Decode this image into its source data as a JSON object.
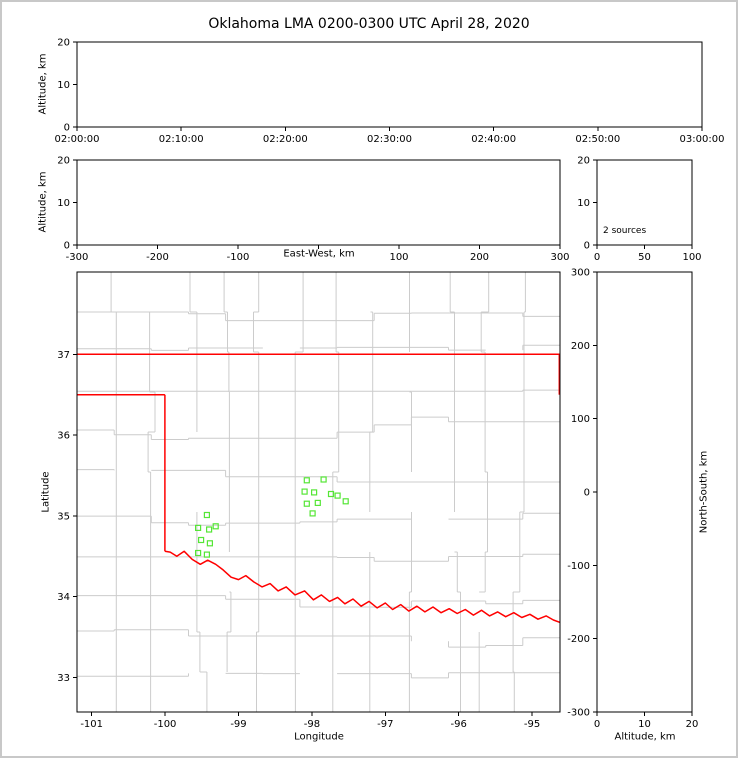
{
  "title": "Oklahoma LMA 0200-0300 UTC April 28, 2020",
  "colors": {
    "state_border": "#ff0000",
    "county": "#cccccc",
    "source": "#55e636",
    "axis": "#000000",
    "background": "#ffffff",
    "frame": "#c8c8c8"
  },
  "panels": {
    "time_height": {
      "ylabel": "Altitude, km"
    },
    "ew_height": {
      "ylabel": "Altitude, km",
      "xlabel": "East-West, km"
    },
    "alt_hist": {
      "annotation": "2 sources"
    },
    "plan_view": {
      "xlabel": "Longitude",
      "ylabel": "Latitude"
    },
    "ns_height": {
      "xlabel": "Altitude, km",
      "ylabel": "North-South, km"
    }
  },
  "chart_data": [
    {
      "id": "time_height",
      "type": "scatter",
      "title": "Oklahoma LMA 0200-0300 UTC April 28, 2020",
      "xlabel": "",
      "ylabel": "Altitude, km",
      "xticks": [
        "02:00:00",
        "02:10:00",
        "02:20:00",
        "02:30:00",
        "02:40:00",
        "02:50:00",
        "03:00:00"
      ],
      "ylim": [
        0,
        20
      ],
      "yticks": [
        0,
        10,
        20
      ],
      "grid": false,
      "points": []
    },
    {
      "id": "ew_height",
      "type": "scatter",
      "xlabel": "East-West, km",
      "ylabel": "Altitude, km",
      "xlim": [
        -300,
        300
      ],
      "xticks": [
        -300,
        -200,
        -100,
        0,
        100,
        200,
        300
      ],
      "xtick_labels": [
        "-300",
        "-200",
        "-100",
        "",
        "100",
        "200",
        "300"
      ],
      "ylim": [
        0,
        20
      ],
      "yticks": [
        0,
        10,
        20
      ],
      "grid": false,
      "points": []
    },
    {
      "id": "alt_hist",
      "type": "line",
      "xlabel": "",
      "ylabel": "",
      "xlim": [
        0,
        100
      ],
      "xticks": [
        0,
        50,
        100
      ],
      "ylim": [
        0,
        20
      ],
      "yticks": [
        0,
        10,
        20
      ],
      "annotation": "2 sources",
      "grid": false,
      "values": []
    },
    {
      "id": "plan_view",
      "type": "scatter",
      "xlabel": "Longitude",
      "ylabel": "Latitude",
      "xlim": [
        -101.2,
        -94.62
      ],
      "xticks": [
        -101,
        -100,
        -99,
        -98,
        -97,
        -96,
        -95
      ],
      "ylim": [
        32.57,
        38.02
      ],
      "yticks": [
        33,
        34,
        35,
        36,
        37
      ],
      "grid": false,
      "points": [
        [
          -99.43,
          35.01
        ],
        [
          -99.55,
          34.85
        ],
        [
          -99.4,
          34.83
        ],
        [
          -99.31,
          34.87
        ],
        [
          -99.51,
          34.7
        ],
        [
          -99.39,
          34.66
        ],
        [
          -99.55,
          34.54
        ],
        [
          -99.43,
          34.52
        ],
        [
          -98.07,
          35.44
        ],
        [
          -97.84,
          35.45
        ],
        [
          -98.1,
          35.3
        ],
        [
          -97.97,
          35.29
        ],
        [
          -97.74,
          35.27
        ],
        [
          -97.65,
          35.25
        ],
        [
          -98.07,
          35.15
        ],
        [
          -97.92,
          35.16
        ],
        [
          -97.99,
          35.03
        ],
        [
          -97.54,
          35.18
        ]
      ],
      "state_border": [
        [
          [
            -101.2,
            37.0
          ],
          [
            -94.62,
            37.0
          ]
        ],
        [
          [
            -101.2,
            36.5
          ],
          [
            -100.003,
            36.5
          ]
        ],
        [
          [
            -100.003,
            36.5
          ],
          [
            -100.003,
            34.56
          ]
        ],
        [
          [
            -94.63,
            37.0
          ],
          [
            -94.63,
            36.5
          ]
        ],
        [
          [
            -100.003,
            34.56
          ],
          [
            -99.93,
            34.55
          ],
          [
            -99.84,
            34.5
          ],
          [
            -99.74,
            34.56
          ],
          [
            -99.63,
            34.46
          ],
          [
            -99.52,
            34.4
          ],
          [
            -99.42,
            34.45
          ],
          [
            -99.31,
            34.4
          ],
          [
            -99.21,
            34.33
          ],
          [
            -99.1,
            34.24
          ],
          [
            -99.0,
            34.21
          ],
          [
            -98.9,
            34.26
          ],
          [
            -98.79,
            34.18
          ],
          [
            -98.68,
            34.12
          ],
          [
            -98.57,
            34.16
          ],
          [
            -98.46,
            34.07
          ],
          [
            -98.35,
            34.12
          ],
          [
            -98.23,
            34.02
          ],
          [
            -98.1,
            34.07
          ],
          [
            -97.98,
            33.96
          ],
          [
            -97.87,
            34.02
          ],
          [
            -97.76,
            33.94
          ],
          [
            -97.65,
            33.99
          ],
          [
            -97.55,
            33.91
          ],
          [
            -97.44,
            33.97
          ],
          [
            -97.33,
            33.88
          ],
          [
            -97.22,
            33.94
          ],
          [
            -97.11,
            33.86
          ],
          [
            -97.0,
            33.92
          ],
          [
            -96.9,
            33.84
          ],
          [
            -96.79,
            33.9
          ],
          [
            -96.68,
            33.82
          ],
          [
            -96.57,
            33.88
          ],
          [
            -96.46,
            33.81
          ],
          [
            -96.35,
            33.87
          ],
          [
            -96.24,
            33.8
          ],
          [
            -96.13,
            33.85
          ],
          [
            -96.02,
            33.79
          ],
          [
            -95.91,
            33.84
          ],
          [
            -95.8,
            33.77
          ],
          [
            -95.69,
            33.83
          ],
          [
            -95.58,
            33.76
          ],
          [
            -95.47,
            33.81
          ],
          [
            -95.36,
            33.75
          ],
          [
            -95.25,
            33.8
          ],
          [
            -95.14,
            33.74
          ],
          [
            -95.03,
            33.78
          ],
          [
            -94.92,
            33.72
          ],
          [
            -94.81,
            33.76
          ],
          [
            -94.71,
            33.71
          ],
          [
            -94.62,
            33.68
          ]
        ]
      ]
    },
    {
      "id": "ns_height",
      "type": "scatter",
      "xlabel": "Altitude, km",
      "ylabel": "North-South, km",
      "xlim": [
        0,
        20
      ],
      "xticks": [
        0,
        10,
        20
      ],
      "ylim": [
        -300,
        300
      ],
      "yticks": [
        -300,
        -200,
        -100,
        0,
        100,
        200,
        300
      ],
      "grid": false,
      "points": []
    }
  ]
}
